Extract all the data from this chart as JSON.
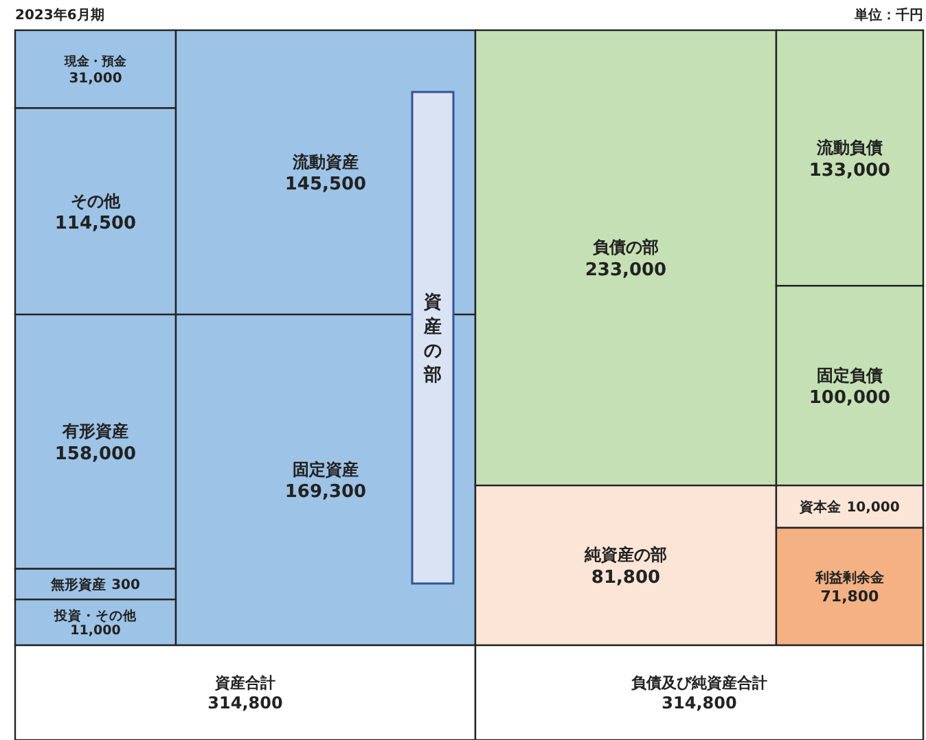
{
  "chart_data": {
    "type": "other",
    "title": "2023年6月期",
    "subtitle": "単位：千円",
    "categories": [
      "現金・預金",
      "その他",
      "有形資産",
      "無形資産",
      "投資・その他",
      "流動資産",
      "固定資産",
      "資産の部",
      "負債の部",
      "流動負債",
      "固定負債",
      "純資産の部",
      "資本金",
      "利益剰余金",
      "資産合計",
      "負債及び純資産合計"
    ],
    "values": [
      31000,
      114500,
      158000,
      300,
      11000,
      145500,
      169300,
      null,
      233000,
      133000,
      100000,
      81800,
      10000,
      71800,
      314800,
      314800
    ],
    "value_labels": [
      "31,000",
      "114,500",
      "158,000",
      "300",
      "11,000",
      "145,500",
      "169,300",
      null,
      "233,000",
      "133,000",
      "100,000",
      "81,800",
      "10,000",
      "71,800",
      "314,800",
      "314,800"
    ],
    "colors": [
      "#9dc3e6",
      "#9dc3e6",
      "#9dc3e6",
      "#9dc3e6",
      "#9dc3e6",
      "#9dc3e6",
      "#9dc3e6",
      "#dae3f3",
      "#c5e0b4",
      "#c5e0b4",
      "#c5e0b4",
      "#fbe5d6",
      "#fbe5d6",
      "#f4b183",
      "#ffffff",
      "#ffffff"
    ]
  }
}
